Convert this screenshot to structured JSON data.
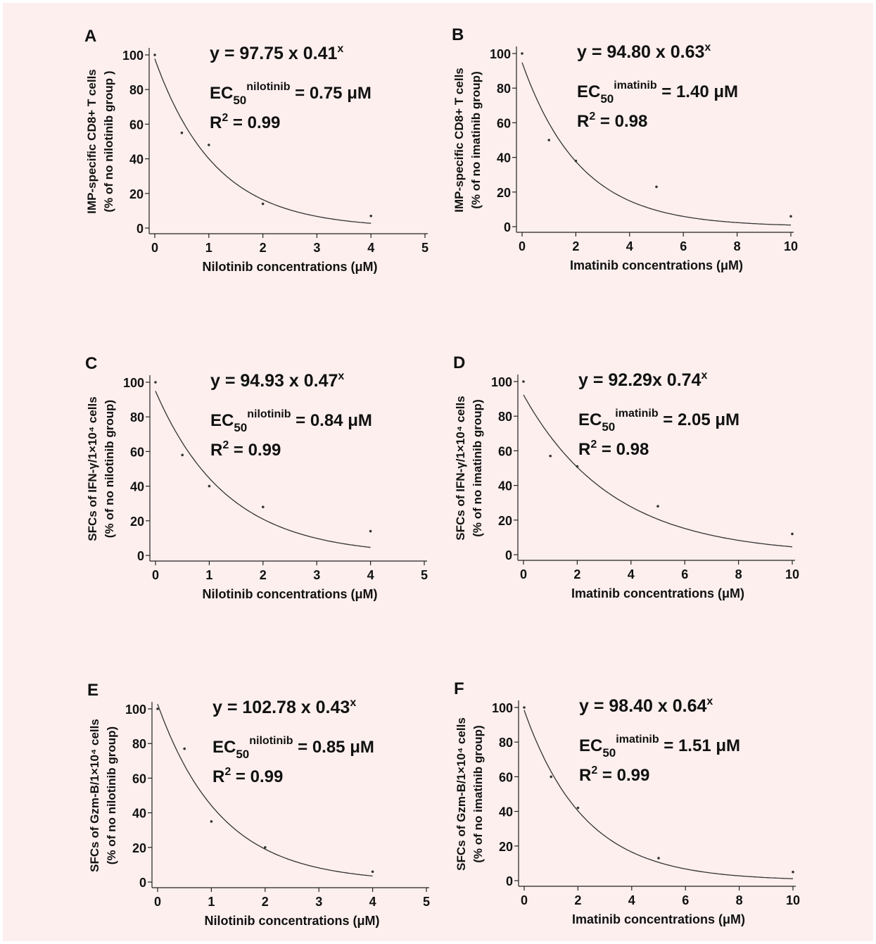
{
  "figure": {
    "background": "#fcefee"
  },
  "chart_data": [
    {
      "type": "scatter",
      "panel": "A",
      "equation": {
        "base": "y = 97.75 x 0.41",
        "sup": "x"
      },
      "ec50": {
        "prefix": "EC",
        "sub": "50",
        "sup": "nilotinib",
        "value": " = 0.75 μM"
      },
      "r2": {
        "prefix": "R",
        "sup": "2",
        "value": " = 0.99"
      },
      "fit": {
        "a": 97.75,
        "b": 0.41
      },
      "x": [
        0,
        0.5,
        1,
        2,
        4
      ],
      "y": [
        100,
        55,
        48,
        14,
        7
      ],
      "xlim": [
        0,
        5
      ],
      "ylim": [
        0,
        100
      ],
      "xticks": [
        0,
        1,
        2,
        3,
        4,
        5
      ],
      "yticks": [
        0,
        20,
        40,
        60,
        80,
        100
      ],
      "xlabel": "Nilotinib concentrations (μM)",
      "ylabel_lines": [
        "IMP-specific CD8+ T cells",
        "(% of   no nilotinib group )"
      ]
    },
    {
      "type": "scatter",
      "panel": "B",
      "equation": {
        "base": "y = 94.80 x 0.63",
        "sup": "x"
      },
      "ec50": {
        "prefix": "EC",
        "sub": "50",
        "sup": "imatinib",
        "value": " = 1.40 μM"
      },
      "r2": {
        "prefix": "R",
        "sup": "2",
        "value": " = 0.98"
      },
      "fit": {
        "a": 94.8,
        "b": 0.63
      },
      "x": [
        0,
        1,
        2,
        5,
        10
      ],
      "y": [
        100,
        50,
        38,
        23,
        6
      ],
      "xlim": [
        0,
        10
      ],
      "ylim": [
        0,
        100
      ],
      "xticks": [
        0,
        2,
        4,
        6,
        8,
        10
      ],
      "yticks": [
        0,
        20,
        40,
        60,
        80,
        100
      ],
      "xlabel": "Imatinib concentrations (μM)",
      "ylabel_lines": [
        "IMP-specific CD8+ T cells",
        "(% of   no imatinib group)"
      ]
    },
    {
      "type": "scatter",
      "panel": "C",
      "equation": {
        "base": "y = 94.93 x 0.47",
        "sup": "x"
      },
      "ec50": {
        "prefix": "EC",
        "sub": "50",
        "sup": "nilotinib",
        "value": " = 0.84 μM"
      },
      "r2": {
        "prefix": "R",
        "sup": "2",
        "value": " = 0.99"
      },
      "fit": {
        "a": 94.93,
        "b": 0.47
      },
      "x": [
        0,
        0.5,
        1,
        2,
        4
      ],
      "y": [
        100,
        58,
        40,
        28,
        14
      ],
      "xlim": [
        0,
        5
      ],
      "ylim": [
        0,
        100
      ],
      "xticks": [
        0,
        1,
        2,
        3,
        4,
        5
      ],
      "yticks": [
        0,
        20,
        40,
        60,
        80,
        100
      ],
      "xlabel": "Nilotinib concentrations (μM)",
      "ylabel_lines": [
        "SFCs of IFN-γ/1×10⁴ cells",
        "(% of   no nilotinib group)"
      ]
    },
    {
      "type": "scatter",
      "panel": "D",
      "equation": {
        "base": "y = 92.29x 0.74",
        "sup": "x"
      },
      "ec50": {
        "prefix": "EC",
        "sub": "50",
        "sup": "imatinib",
        "value": " = 2.05 μM"
      },
      "r2": {
        "prefix": "R",
        "sup": "2",
        "value": " = 0.98"
      },
      "fit": {
        "a": 92.29,
        "b": 0.74
      },
      "x": [
        0,
        1,
        2,
        5,
        10
      ],
      "y": [
        100,
        57,
        51,
        28,
        12
      ],
      "xlim": [
        0,
        10
      ],
      "ylim": [
        0,
        100
      ],
      "xticks": [
        0,
        2,
        4,
        6,
        8,
        10
      ],
      "yticks": [
        0,
        20,
        40,
        60,
        80,
        100
      ],
      "xlabel": "Imatinib concentrations (μM)",
      "ylabel_lines": [
        "SFCs of IFN-γ/1×10⁴ cells",
        "(% of   no imatinib group)"
      ]
    },
    {
      "type": "scatter",
      "panel": "E",
      "equation": {
        "base": "y = 102.78 x 0.43",
        "sup": "x"
      },
      "ec50": {
        "prefix": "EC",
        "sub": "50",
        "sup": "nilotinib",
        "value": " = 0.85 μM"
      },
      "r2": {
        "prefix": "R",
        "sup": "2",
        "value": " = 0.99"
      },
      "fit": {
        "a": 102.78,
        "b": 0.43
      },
      "x": [
        0,
        0.5,
        1,
        2,
        4
      ],
      "y": [
        100,
        77,
        35,
        20,
        6
      ],
      "xlim": [
        0,
        5
      ],
      "ylim": [
        0,
        100
      ],
      "xticks": [
        0,
        1,
        2,
        3,
        4,
        5
      ],
      "yticks": [
        0,
        20,
        40,
        60,
        80,
        100
      ],
      "xlabel": "Nilotinib concentrations (μM)",
      "ylabel_lines": [
        "SFCs of Gzm-B/1×10⁴ cells",
        "(% of   no nilotinib group)"
      ]
    },
    {
      "type": "scatter",
      "panel": "F",
      "equation": {
        "base": "y = 98.40 x 0.64",
        "sup": "x"
      },
      "ec50": {
        "prefix": "EC",
        "sub": "50",
        "sup": "imatinib",
        "value": " = 1.51 μM"
      },
      "r2": {
        "prefix": "R",
        "sup": "2",
        "value": " = 0.99"
      },
      "fit": {
        "a": 98.4,
        "b": 0.64
      },
      "x": [
        0,
        1,
        2,
        5,
        10
      ],
      "y": [
        100,
        60,
        42,
        13,
        5
      ],
      "xlim": [
        0,
        10
      ],
      "ylim": [
        0,
        100
      ],
      "xticks": [
        0,
        2,
        4,
        6,
        8,
        10
      ],
      "yticks": [
        0,
        20,
        40,
        60,
        80,
        100
      ],
      "xlabel": "Imatinib concentrations (μM)",
      "ylabel_lines": [
        "SFCs of Gzm-B/1×10⁴ cells",
        "(% of   no imatinib group)"
      ]
    }
  ]
}
